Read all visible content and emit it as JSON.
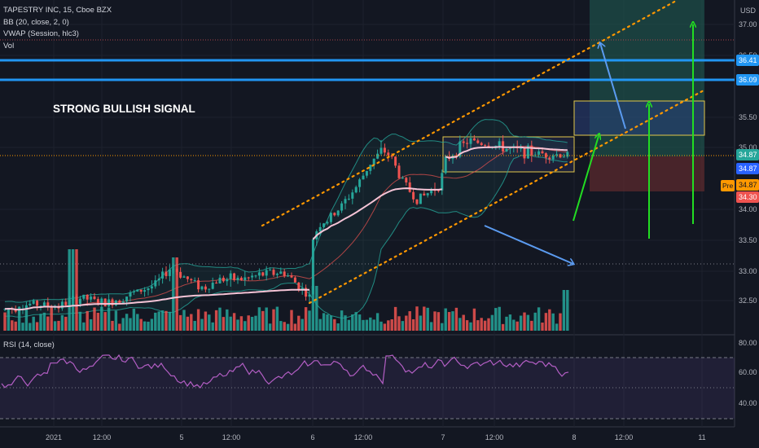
{
  "legend": {
    "symbol": "TAPESTRY INC, 15, Cboe BZX",
    "bb": "BB (20, close, 2, 0)",
    "vwap": "VWAP (Session, hlc3)",
    "vol": "Vol"
  },
  "rsi_label": "RSI (14, close)",
  "currency": "USD",
  "annotation": "STRONG BULLISH SIGNAL",
  "price_axis": {
    "ticks": [
      "37.00",
      "36.50",
      "35.50",
      "35.00",
      "34.00",
      "33.50",
      "33.00",
      "32.50"
    ]
  },
  "price_badges": [
    {
      "text": "36.41",
      "color": "#2196f3"
    },
    {
      "text": "36.09",
      "color": "#2196f3"
    },
    {
      "text": "34.87",
      "color": "#26a69a"
    },
    {
      "text": "34.87",
      "color": "#2962ff"
    },
    {
      "text": "34.87",
      "color": "#ff9800"
    },
    {
      "text": "34.30",
      "color": "#ef5350"
    }
  ],
  "pre_label": "Pre",
  "rsi_axis": {
    "ticks": [
      "80.00",
      "60.00",
      "40.00"
    ]
  },
  "time_axis": {
    "ticks": [
      "2021",
      "12:00",
      "5",
      "12:00",
      "6",
      "12:00",
      "7",
      "12:00",
      "8",
      "12:00",
      "11"
    ]
  },
  "chart_data": {
    "type": "candlestick",
    "title": "TAPESTRY INC, 15, Cboe BZX",
    "timeframe": "15",
    "ylim": [
      32.1,
      37.3
    ],
    "levels": [
      36.41,
      36.09
    ],
    "last_price": 34.87,
    "stop_level": 34.3,
    "indicators": [
      "BB (20, close, 2, 0)",
      "VWAP (Session, hlc3)",
      "Vol",
      "RSI (14, close)"
    ],
    "rsi_ylim": [
      22,
      90
    ],
    "rsi_bands": [
      70,
      30
    ],
    "colors": {
      "up": "#26a69a",
      "down": "#ef5350",
      "level": "#2196f3",
      "channel": "#ff9800",
      "arrow_up": "#22dd22",
      "arrow": "#5b9bf0"
    }
  }
}
